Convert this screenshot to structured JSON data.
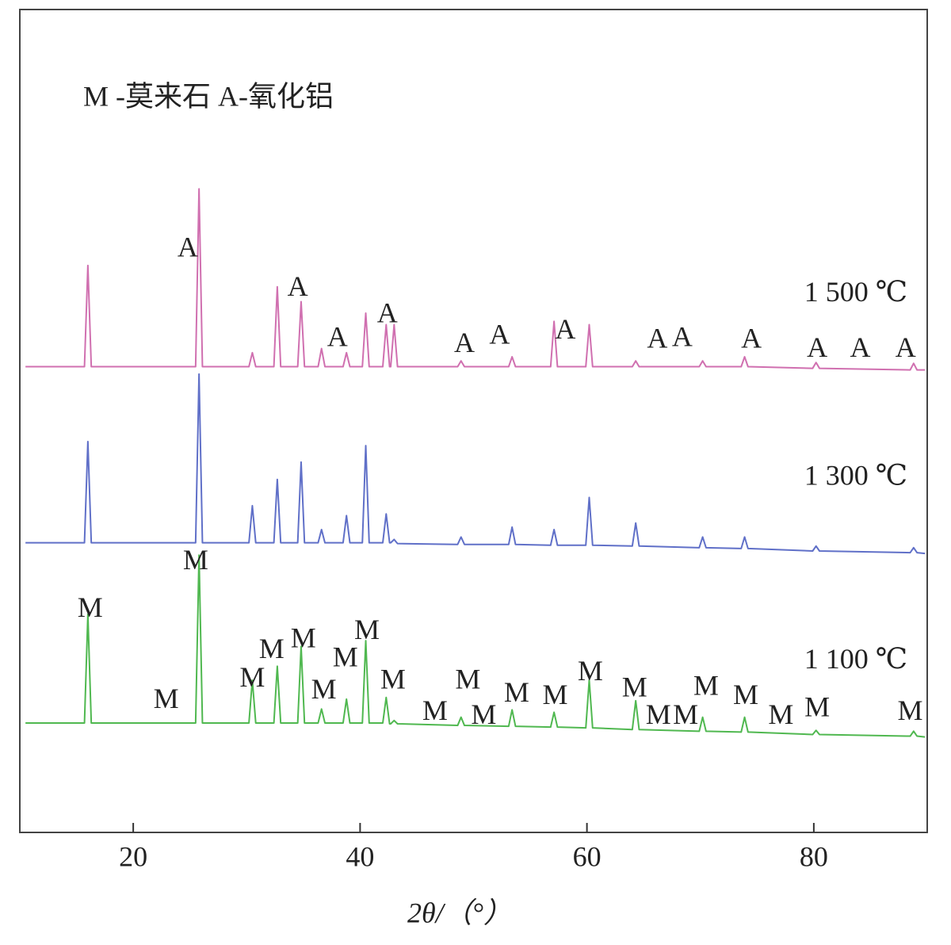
{
  "chart_data": {
    "type": "line",
    "title": "M -莫来石 A-氧化铝",
    "x_label": "2θ/（°）",
    "xlim": [
      10,
      90
    ],
    "xticks": [
      20,
      40,
      60,
      80
    ],
    "ylim": [
      0,
      100
    ],
    "x": [
      10.5,
      15.7,
      16.0,
      16.3,
      25.5,
      25.8,
      26.1,
      30.2,
      30.5,
      30.8,
      32.4,
      32.7,
      33.0,
      34.5,
      34.8,
      35.1,
      36.3,
      36.6,
      36.9,
      38.5,
      38.8,
      39.1,
      40.2,
      40.5,
      40.8,
      42.0,
      42.3,
      42.6,
      42.7,
      43.0,
      43.3,
      48.6,
      48.9,
      49.2,
      53.1,
      53.4,
      53.7,
      56.8,
      57.1,
      57.4,
      59.9,
      60.2,
      60.5,
      64.0,
      64.3,
      64.6,
      69.9,
      70.2,
      70.5,
      73.6,
      73.9,
      74.2,
      79.9,
      80.2,
      80.5,
      88.5,
      88.8,
      89.1,
      89.8
    ],
    "series": [
      {
        "name": "1 500 ℃",
        "color": "#d070b0",
        "values": [
          56.6,
          56.6,
          68.9,
          56.6,
          56.6,
          78.2,
          56.6,
          56.6,
          58.3,
          56.6,
          56.6,
          66.3,
          56.6,
          56.6,
          64.5,
          56.6,
          56.6,
          58.8,
          56.6,
          56.6,
          58.3,
          56.6,
          56.6,
          63.1,
          56.6,
          56.6,
          61.7,
          56.6,
          56.6,
          61.7,
          56.6,
          56.6,
          57.3,
          56.6,
          56.6,
          57.8,
          56.6,
          56.6,
          62.1,
          56.6,
          56.6,
          61.7,
          56.6,
          56.6,
          57.3,
          56.6,
          56.6,
          57.3,
          56.6,
          56.6,
          57.8,
          56.6,
          56.4,
          57.1,
          56.4,
          56.2,
          57.0,
          56.2,
          56.2
        ]
      },
      {
        "name": "1 300 ℃",
        "color": "#6070c8",
        "values": [
          35.2,
          35.2,
          47.5,
          35.2,
          35.2,
          55.7,
          35.2,
          35.2,
          39.7,
          35.2,
          35.2,
          42.9,
          35.2,
          35.2,
          45.0,
          35.2,
          35.2,
          36.8,
          35.2,
          35.2,
          38.5,
          35.2,
          35.2,
          47.0,
          35.2,
          35.2,
          38.7,
          35.2,
          35.2,
          35.6,
          35.1,
          35.0,
          35.9,
          35.0,
          35.0,
          37.1,
          35.0,
          34.9,
          36.8,
          34.9,
          34.9,
          40.7,
          34.9,
          34.8,
          37.6,
          34.8,
          34.6,
          35.9,
          34.6,
          34.5,
          35.9,
          34.5,
          34.2,
          34.8,
          34.2,
          34.0,
          34.6,
          34.0,
          33.9
        ]
      },
      {
        "name": "1 100 ℃",
        "color": "#50b850",
        "values": [
          13.3,
          13.3,
          26.5,
          13.3,
          13.3,
          33.7,
          13.3,
          13.3,
          18.5,
          13.3,
          13.3,
          20.2,
          13.3,
          13.3,
          22.6,
          13.3,
          13.3,
          15.0,
          13.3,
          13.3,
          16.2,
          13.3,
          13.3,
          23.3,
          13.3,
          13.3,
          16.4,
          13.2,
          13.2,
          13.6,
          13.2,
          13.0,
          14.0,
          13.0,
          12.9,
          14.9,
          12.9,
          12.8,
          14.6,
          12.8,
          12.7,
          18.5,
          12.7,
          12.5,
          16.0,
          12.5,
          12.3,
          14.0,
          12.3,
          12.2,
          14.0,
          12.2,
          11.9,
          12.4,
          11.9,
          11.7,
          12.3,
          11.7,
          11.6
        ]
      }
    ],
    "annotations": [
      {
        "text": "A",
        "x": 24.8,
        "y": 70.8
      },
      {
        "text": "A",
        "x": 34.5,
        "y": 66.0
      },
      {
        "text": "A",
        "x": 38.0,
        "y": 59.9
      },
      {
        "text": "A",
        "x": 42.4,
        "y": 62.8
      },
      {
        "text": "A",
        "x": 49.2,
        "y": 59.2
      },
      {
        "text": "A",
        "x": 52.3,
        "y": 60.2
      },
      {
        "text": "A",
        "x": 58.1,
        "y": 60.8
      },
      {
        "text": "A",
        "x": 66.2,
        "y": 59.7
      },
      {
        "text": "A",
        "x": 68.4,
        "y": 59.9
      },
      {
        "text": "A",
        "x": 74.5,
        "y": 59.7
      },
      {
        "text": "A",
        "x": 80.3,
        "y": 58.6
      },
      {
        "text": "A",
        "x": 84.1,
        "y": 58.6
      },
      {
        "text": "A",
        "x": 88.1,
        "y": 58.6
      },
      {
        "text": "M",
        "x": 16.2,
        "y": 27.0
      },
      {
        "text": "M",
        "x": 22.9,
        "y": 15.9
      },
      {
        "text": "M",
        "x": 25.5,
        "y": 32.8
      },
      {
        "text": "M",
        "x": 30.5,
        "y": 18.5
      },
      {
        "text": "M",
        "x": 32.2,
        "y": 22.0
      },
      {
        "text": "M",
        "x": 35.0,
        "y": 23.3
      },
      {
        "text": "M",
        "x": 36.8,
        "y": 17.1
      },
      {
        "text": "M",
        "x": 38.7,
        "y": 21.0
      },
      {
        "text": "M",
        "x": 40.6,
        "y": 24.3
      },
      {
        "text": "M",
        "x": 42.9,
        "y": 18.3
      },
      {
        "text": "M",
        "x": 46.6,
        "y": 14.5
      },
      {
        "text": "M",
        "x": 49.5,
        "y": 18.3
      },
      {
        "text": "M",
        "x": 50.9,
        "y": 14.0
      },
      {
        "text": "M",
        "x": 53.8,
        "y": 16.7
      },
      {
        "text": "M",
        "x": 57.2,
        "y": 16.4
      },
      {
        "text": "M",
        "x": 60.3,
        "y": 19.3
      },
      {
        "text": "M",
        "x": 64.2,
        "y": 17.3
      },
      {
        "text": "M",
        "x": 66.3,
        "y": 14.0
      },
      {
        "text": "M",
        "x": 68.7,
        "y": 14.0
      },
      {
        "text": "M",
        "x": 70.5,
        "y": 17.5
      },
      {
        "text": "M",
        "x": 74.0,
        "y": 16.4
      },
      {
        "text": "M",
        "x": 77.1,
        "y": 14.0
      },
      {
        "text": "M",
        "x": 80.3,
        "y": 14.9
      },
      {
        "text": "M",
        "x": 88.5,
        "y": 14.5
      }
    ]
  }
}
